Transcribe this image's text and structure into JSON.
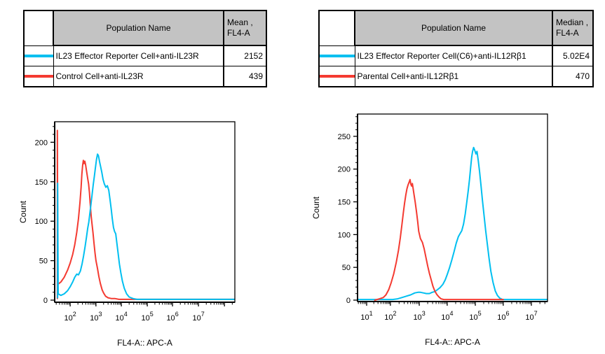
{
  "left_panel": {
    "table": {
      "population_header": "Population Name",
      "stat_header_line1": "Mean ,",
      "stat_header_line2": "FL4-A",
      "rows": [
        {
          "color": "#00bff0",
          "name": "IL23 Effector Reporter Cell+anti-IL23R",
          "value": "2152"
        },
        {
          "color": "#f43a31",
          "name": "Control Cell+anti-IL23R",
          "value": "439"
        }
      ]
    },
    "chart_data": {
      "type": "line",
      "subtype": "flow-cytometry-overlay-histogram",
      "title": "",
      "xlabel": "FL4-A:: APC-A",
      "ylabel": "Count",
      "x_scale": "log",
      "x_labeled_exponents": [
        2,
        3,
        4,
        5,
        6,
        7
      ],
      "x_anchors": [
        [
          1.42,
          0
        ],
        [
          2,
          0.086
        ],
        [
          3,
          0.229
        ],
        [
          4,
          0.37
        ],
        [
          5,
          0.514
        ],
        [
          6,
          0.654
        ],
        [
          7,
          0.798
        ],
        [
          8.4,
          1
        ]
      ],
      "ylim": [
        0,
        226
      ],
      "y_ticks": [
        0,
        50,
        100,
        150,
        200
      ],
      "y_minor_step": 10,
      "grid": "off",
      "legend": "table-above",
      "series": [
        {
          "name": "Control Cell+anti-IL23R",
          "color": "#f43a31",
          "stat": "Mean FL4-A = 439",
          "points": [
            [
              33,
              2
            ],
            [
              33,
              215
            ],
            [
              34.5,
              20
            ],
            [
              45,
              23
            ],
            [
              60,
              29
            ],
            [
              80,
              38
            ],
            [
              100,
              47
            ],
            [
              125,
              58
            ],
            [
              150,
              70
            ],
            [
              180,
              86
            ],
            [
              210,
              103
            ],
            [
              240,
              124
            ],
            [
              265,
              143
            ],
            [
              285,
              160
            ],
            [
              305,
              171
            ],
            [
              325,
              177
            ],
            [
              345,
              173
            ],
            [
              370,
              176
            ],
            [
              400,
              171
            ],
            [
              440,
              162
            ],
            [
              480,
              154
            ],
            [
              520,
              147
            ],
            [
              560,
              136
            ],
            [
              600,
              122
            ],
            [
              650,
              107
            ],
            [
              700,
              97
            ],
            [
              770,
              85
            ],
            [
              840,
              72
            ],
            [
              920,
              60
            ],
            [
              1000,
              50
            ],
            [
              1150,
              40
            ],
            [
              1300,
              30
            ],
            [
              1500,
              21
            ],
            [
              1750,
              13
            ],
            [
              2000,
              9
            ],
            [
              2400,
              5
            ],
            [
              3000,
              3
            ],
            [
              4000,
              2
            ],
            [
              5500,
              2
            ],
            [
              8000,
              1
            ],
            [
              12000,
              1
            ],
            [
              250000000,
              1
            ]
          ]
        },
        {
          "name": "IL23 Effector Reporter Cell+anti-IL23R",
          "color": "#00bff0",
          "stat": "Mean FL4-A = 2152",
          "points": [
            [
              34,
              3
            ],
            [
              34,
              148
            ],
            [
              35.5,
              8
            ],
            [
              45,
              6
            ],
            [
              60,
              8
            ],
            [
              80,
              12
            ],
            [
              100,
              17
            ],
            [
              125,
              23
            ],
            [
              150,
              29
            ],
            [
              180,
              33
            ],
            [
              210,
              32
            ],
            [
              250,
              37
            ],
            [
              290,
              46
            ],
            [
              330,
              56
            ],
            [
              380,
              68
            ],
            [
              430,
              80
            ],
            [
              480,
              91
            ],
            [
              530,
              99
            ],
            [
              580,
              110
            ],
            [
              640,
              121
            ],
            [
              710,
              134
            ],
            [
              790,
              147
            ],
            [
              870,
              157
            ],
            [
              950,
              167
            ],
            [
              1050,
              178
            ],
            [
              1150,
              185
            ],
            [
              1250,
              183
            ],
            [
              1400,
              175
            ],
            [
              1550,
              168
            ],
            [
              1700,
              162
            ],
            [
              1900,
              153
            ],
            [
              2150,
              147
            ],
            [
              2450,
              143
            ],
            [
              2800,
              145
            ],
            [
              3200,
              139
            ],
            [
              3600,
              127
            ],
            [
              4000,
              115
            ],
            [
              4400,
              103
            ],
            [
              4900,
              92
            ],
            [
              5400,
              87
            ],
            [
              6000,
              84
            ],
            [
              6600,
              73
            ],
            [
              7400,
              60
            ],
            [
              8400,
              46
            ],
            [
              9500,
              35
            ],
            [
              11000,
              24
            ],
            [
              13000,
              15
            ],
            [
              16000,
              8
            ],
            [
              20000,
              4
            ],
            [
              28000,
              2
            ],
            [
              40000,
              1
            ],
            [
              250000000,
              1
            ]
          ]
        }
      ]
    }
  },
  "right_panel": {
    "table": {
      "population_header": "Population Name",
      "stat_header_line1": "Median ,",
      "stat_header_line2": "FL4-A",
      "rows": [
        {
          "color": "#00bff0",
          "name": "IL23 Effector Reporter Cell(C6)+anti-IL12Rβ1",
          "value": "5.02E4"
        },
        {
          "color": "#f43a31",
          "name": "Parental Cell+anti-IL12Rβ1",
          "value": "470"
        }
      ]
    },
    "chart_data": {
      "type": "line",
      "subtype": "flow-cytometry-overlay-histogram",
      "title": "",
      "xlabel": "FL4-A:: APC-A",
      "ylabel": "Count",
      "x_scale": "log",
      "x_labeled_exponents": [
        1,
        2,
        3,
        4,
        5,
        6,
        7
      ],
      "x_anchors": [
        [
          0.67,
          0
        ],
        [
          1,
          0.048
        ],
        [
          2,
          0.173
        ],
        [
          3,
          0.325
        ],
        [
          4,
          0.472
        ],
        [
          5,
          0.62
        ],
        [
          6,
          0.767
        ],
        [
          7,
          0.915
        ],
        [
          7.57,
          1
        ]
      ],
      "ylim": [
        0,
        284
      ],
      "y_ticks": [
        0,
        50,
        100,
        150,
        200,
        250
      ],
      "y_minor_step": 10,
      "grid": "off",
      "legend": "table-above",
      "series": [
        {
          "name": "IL23 Effector Reporter Cell(C6)+anti-IL12Rβ1",
          "color": "#00bff0",
          "stat": "Median FL4-A = 5.02E4",
          "points": [
            [
              5,
              1
            ],
            [
              120,
              1
            ],
            [
              180,
              2
            ],
            [
              250,
              4
            ],
            [
              350,
              6
            ],
            [
              500,
              8
            ],
            [
              700,
              11
            ],
            [
              900,
              12
            ],
            [
              1100,
              12
            ],
            [
              1400,
              11
            ],
            [
              1800,
              10
            ],
            [
              2300,
              10
            ],
            [
              2900,
              12
            ],
            [
              3600,
              13
            ],
            [
              4500,
              16
            ],
            [
              5500,
              19
            ],
            [
              7000,
              24
            ],
            [
              8500,
              31
            ],
            [
              10000,
              39
            ],
            [
              12000,
              49
            ],
            [
              14500,
              61
            ],
            [
              17500,
              74
            ],
            [
              21000,
              87
            ],
            [
              25000,
              97
            ],
            [
              29000,
              102
            ],
            [
              33000,
              106
            ],
            [
              38000,
              116
            ],
            [
              44000,
              132
            ],
            [
              50000,
              150
            ],
            [
              56000,
              167
            ],
            [
              62000,
              184
            ],
            [
              68000,
              202
            ],
            [
              74000,
              218
            ],
            [
              80000,
              227
            ],
            [
              87000,
              233
            ],
            [
              95000,
              229
            ],
            [
              105000,
              223
            ],
            [
              115000,
              227
            ],
            [
              127000,
              213
            ],
            [
              142000,
              196
            ],
            [
              160000,
              174
            ],
            [
              180000,
              152
            ],
            [
              205000,
              130
            ],
            [
              235000,
              106
            ],
            [
              270000,
              85
            ],
            [
              310000,
              64
            ],
            [
              360000,
              44
            ],
            [
              430000,
              27
            ],
            [
              520000,
              14
            ],
            [
              620000,
              7
            ],
            [
              750000,
              3
            ],
            [
              950000,
              1
            ],
            [
              37000000,
              1
            ]
          ]
        },
        {
          "name": "Parental Cell+anti-IL12Rβ1",
          "color": "#f43a31",
          "stat": "Median FL4-A = 470",
          "points": [
            [
              22,
              0
            ],
            [
              35,
              2
            ],
            [
              50,
              4
            ],
            [
              65,
              8
            ],
            [
              85,
              16
            ],
            [
              105,
              26
            ],
            [
              130,
              40
            ],
            [
              160,
              58
            ],
            [
              190,
              76
            ],
            [
              220,
              95
            ],
            [
              250,
              115
            ],
            [
              280,
              133
            ],
            [
              310,
              148
            ],
            [
              340,
              160
            ],
            [
              375,
              170
            ],
            [
              410,
              176
            ],
            [
              445,
              180
            ],
            [
              480,
              184
            ],
            [
              510,
              177
            ],
            [
              545,
              174
            ],
            [
              575,
              178
            ],
            [
              610,
              171
            ],
            [
              660,
              161
            ],
            [
              720,
              150
            ],
            [
              800,
              135
            ],
            [
              880,
              120
            ],
            [
              960,
              105
            ],
            [
              1100,
              94
            ],
            [
              1300,
              88
            ],
            [
              1500,
              78
            ],
            [
              1750,
              64
            ],
            [
              2000,
              52
            ],
            [
              2300,
              41
            ],
            [
              2700,
              30
            ],
            [
              3100,
              21
            ],
            [
              3600,
              14
            ],
            [
              4200,
              9
            ],
            [
              5000,
              5
            ],
            [
              6000,
              2
            ],
            [
              7500,
              1
            ],
            [
              1000000,
              1
            ]
          ]
        }
      ]
    }
  }
}
